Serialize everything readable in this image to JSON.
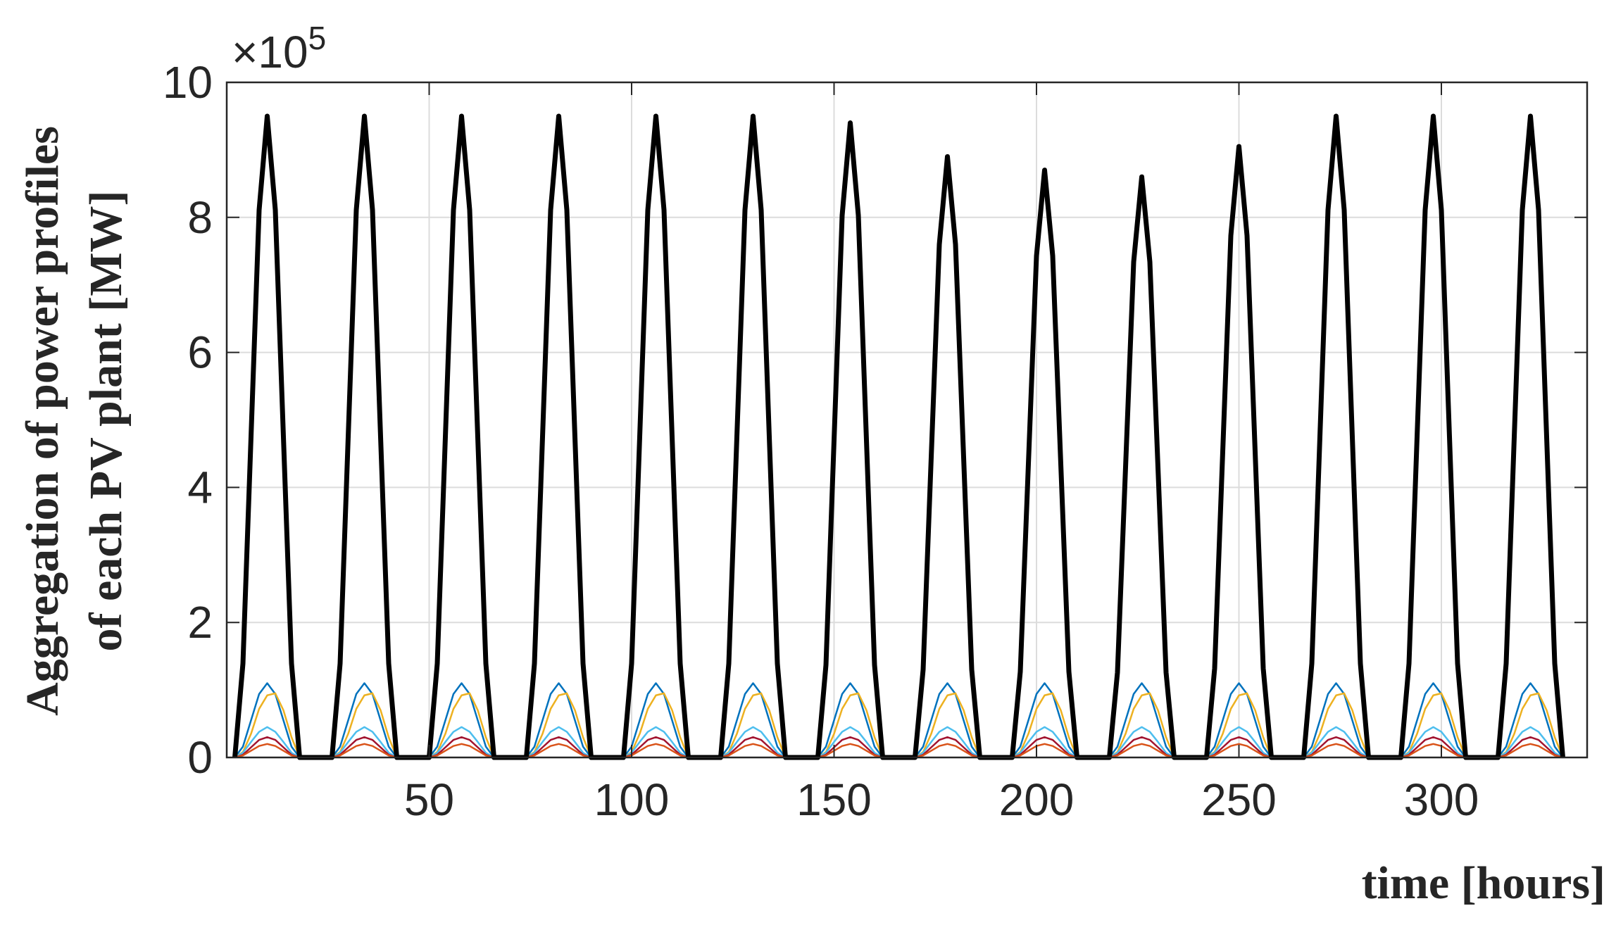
{
  "chart_data": {
    "type": "line",
    "y_label_lines": [
      "Aggregation of power profiles",
      "of each PV plant [MW]"
    ],
    "x_label": "time [hours]",
    "y_multiplier": "×10",
    "y_multiplier_exponent": "5",
    "xlim": [
      0,
      336
    ],
    "xticks": [
      50,
      100,
      150,
      200,
      250,
      300
    ],
    "ylim": [
      0,
      10
    ],
    "yticks": [
      0,
      2,
      4,
      6,
      8,
      10
    ],
    "grid": true,
    "x": [
      2,
      4,
      6,
      8,
      10,
      12,
      14,
      16,
      18,
      26,
      28,
      30,
      32,
      34,
      36,
      38,
      40,
      42,
      50,
      52,
      54,
      56,
      58,
      60,
      62,
      64,
      66,
      74,
      76,
      78,
      80,
      82,
      84,
      86,
      88,
      90,
      98,
      100,
      102,
      104,
      106,
      108,
      110,
      112,
      114,
      122,
      124,
      126,
      128,
      130,
      132,
      134,
      136,
      138,
      146,
      148,
      150,
      152,
      154,
      156,
      158,
      160,
      162,
      170,
      172,
      174,
      176,
      178,
      180,
      182,
      184,
      186,
      194,
      196,
      198,
      200,
      202,
      204,
      206,
      208,
      210,
      218,
      220,
      222,
      224,
      226,
      228,
      230,
      232,
      234,
      242,
      244,
      246,
      248,
      250,
      252,
      254,
      256,
      258,
      266,
      268,
      270,
      272,
      274,
      276,
      278,
      280,
      282,
      290,
      292,
      294,
      296,
      298,
      300,
      302,
      304,
      306,
      314,
      316,
      318,
      320,
      322,
      324,
      326,
      328,
      330
    ],
    "series": [
      {
        "color": "#0072BD",
        "width": 2.5,
        "values": [
          0,
          0.16,
          0.55,
          0.94,
          1.1,
          0.94,
          0.55,
          0.16,
          0,
          0,
          0.16,
          0.55,
          0.94,
          1.1,
          0.94,
          0.55,
          0.16,
          0,
          0,
          0.16,
          0.55,
          0.94,
          1.1,
          0.94,
          0.55,
          0.16,
          0,
          0,
          0.16,
          0.55,
          0.94,
          1.1,
          0.94,
          0.55,
          0.16,
          0,
          0,
          0.16,
          0.55,
          0.94,
          1.1,
          0.94,
          0.55,
          0.16,
          0,
          0,
          0.16,
          0.55,
          0.94,
          1.1,
          0.94,
          0.55,
          0.16,
          0,
          0,
          0.16,
          0.55,
          0.94,
          1.1,
          0.94,
          0.55,
          0.16,
          0,
          0,
          0.16,
          0.55,
          0.94,
          1.1,
          0.94,
          0.55,
          0.16,
          0,
          0,
          0.16,
          0.55,
          0.94,
          1.1,
          0.94,
          0.55,
          0.16,
          0,
          0,
          0.16,
          0.55,
          0.94,
          1.1,
          0.94,
          0.55,
          0.16,
          0,
          0,
          0.16,
          0.55,
          0.94,
          1.1,
          0.94,
          0.55,
          0.16,
          0,
          0,
          0.16,
          0.55,
          0.94,
          1.1,
          0.94,
          0.55,
          0.16,
          0,
          0,
          0.16,
          0.55,
          0.94,
          1.1,
          0.94,
          0.55,
          0.16,
          0,
          0,
          0.16,
          0.55,
          0.94,
          1.1,
          0.94,
          0.55,
          0.16,
          0
        ]
      },
      {
        "color": "#EDB120",
        "width": 2.5,
        "values": [
          0,
          0.08,
          0.35,
          0.72,
          0.92,
          0.95,
          0.7,
          0.3,
          0,
          0,
          0.08,
          0.35,
          0.72,
          0.92,
          0.95,
          0.7,
          0.3,
          0,
          0,
          0.08,
          0.35,
          0.72,
          0.92,
          0.95,
          0.7,
          0.3,
          0,
          0,
          0.08,
          0.35,
          0.72,
          0.92,
          0.95,
          0.7,
          0.3,
          0,
          0,
          0.08,
          0.35,
          0.72,
          0.92,
          0.95,
          0.7,
          0.3,
          0,
          0,
          0.08,
          0.35,
          0.72,
          0.92,
          0.95,
          0.7,
          0.3,
          0,
          0,
          0.08,
          0.35,
          0.72,
          0.92,
          0.95,
          0.7,
          0.3,
          0,
          0,
          0.08,
          0.35,
          0.72,
          0.92,
          0.95,
          0.7,
          0.3,
          0,
          0,
          0.08,
          0.35,
          0.72,
          0.92,
          0.95,
          0.7,
          0.3,
          0,
          0,
          0.08,
          0.35,
          0.72,
          0.92,
          0.95,
          0.7,
          0.3,
          0,
          0,
          0.08,
          0.35,
          0.72,
          0.92,
          0.95,
          0.7,
          0.3,
          0,
          0,
          0.08,
          0.35,
          0.72,
          0.92,
          0.95,
          0.7,
          0.3,
          0,
          0,
          0.08,
          0.35,
          0.72,
          0.92,
          0.95,
          0.7,
          0.3,
          0,
          0,
          0.08,
          0.35,
          0.72,
          0.92,
          0.95,
          0.7,
          0.3,
          0
        ]
      },
      {
        "color": "#4DBEEE",
        "width": 2.5,
        "values": [
          0,
          0.07,
          0.23,
          0.38,
          0.45,
          0.38,
          0.23,
          0.07,
          0,
          0,
          0.07,
          0.23,
          0.38,
          0.45,
          0.38,
          0.23,
          0.07,
          0,
          0,
          0.07,
          0.23,
          0.38,
          0.45,
          0.38,
          0.23,
          0.07,
          0,
          0,
          0.07,
          0.23,
          0.38,
          0.45,
          0.38,
          0.23,
          0.07,
          0,
          0,
          0.07,
          0.23,
          0.38,
          0.45,
          0.38,
          0.23,
          0.07,
          0,
          0,
          0.07,
          0.23,
          0.38,
          0.45,
          0.38,
          0.23,
          0.07,
          0,
          0,
          0.07,
          0.23,
          0.38,
          0.45,
          0.38,
          0.23,
          0.07,
          0,
          0,
          0.07,
          0.23,
          0.38,
          0.45,
          0.38,
          0.23,
          0.07,
          0,
          0,
          0.07,
          0.23,
          0.38,
          0.45,
          0.38,
          0.23,
          0.07,
          0,
          0,
          0.07,
          0.23,
          0.38,
          0.45,
          0.38,
          0.23,
          0.07,
          0,
          0,
          0.07,
          0.23,
          0.38,
          0.45,
          0.38,
          0.23,
          0.07,
          0,
          0,
          0.07,
          0.23,
          0.38,
          0.45,
          0.38,
          0.23,
          0.07,
          0,
          0,
          0.07,
          0.23,
          0.38,
          0.45,
          0.38,
          0.23,
          0.07,
          0,
          0,
          0.07,
          0.23,
          0.38,
          0.45,
          0.38,
          0.23,
          0.07,
          0
        ]
      },
      {
        "color": "#A2142F",
        "width": 2.5,
        "values": [
          0,
          0.04,
          0.15,
          0.26,
          0.3,
          0.26,
          0.15,
          0.04,
          0,
          0,
          0.04,
          0.15,
          0.26,
          0.3,
          0.26,
          0.15,
          0.04,
          0,
          0,
          0.04,
          0.15,
          0.26,
          0.3,
          0.26,
          0.15,
          0.04,
          0,
          0,
          0.04,
          0.15,
          0.26,
          0.3,
          0.26,
          0.15,
          0.04,
          0,
          0,
          0.04,
          0.15,
          0.26,
          0.3,
          0.26,
          0.15,
          0.04,
          0,
          0,
          0.04,
          0.15,
          0.26,
          0.3,
          0.26,
          0.15,
          0.04,
          0,
          0,
          0.04,
          0.15,
          0.26,
          0.3,
          0.26,
          0.15,
          0.04,
          0,
          0,
          0.04,
          0.15,
          0.26,
          0.3,
          0.26,
          0.15,
          0.04,
          0,
          0,
          0.04,
          0.15,
          0.26,
          0.3,
          0.26,
          0.15,
          0.04,
          0,
          0,
          0.04,
          0.15,
          0.26,
          0.3,
          0.26,
          0.15,
          0.04,
          0,
          0,
          0.04,
          0.15,
          0.26,
          0.3,
          0.26,
          0.15,
          0.04,
          0,
          0,
          0.04,
          0.15,
          0.26,
          0.3,
          0.26,
          0.15,
          0.04,
          0,
          0,
          0.04,
          0.15,
          0.26,
          0.3,
          0.26,
          0.15,
          0.04,
          0,
          0,
          0.04,
          0.15,
          0.26,
          0.3,
          0.26,
          0.15,
          0.04,
          0
        ]
      },
      {
        "color": "#D95319",
        "width": 2.5,
        "values": [
          0,
          0.03,
          0.1,
          0.17,
          0.2,
          0.17,
          0.1,
          0.03,
          0,
          0,
          0.03,
          0.1,
          0.17,
          0.2,
          0.17,
          0.1,
          0.03,
          0,
          0,
          0.03,
          0.1,
          0.17,
          0.2,
          0.17,
          0.1,
          0.03,
          0,
          0,
          0.03,
          0.1,
          0.17,
          0.2,
          0.17,
          0.1,
          0.03,
          0,
          0,
          0.03,
          0.1,
          0.17,
          0.2,
          0.17,
          0.1,
          0.03,
          0,
          0,
          0.03,
          0.1,
          0.17,
          0.2,
          0.17,
          0.1,
          0.03,
          0,
          0,
          0.03,
          0.1,
          0.17,
          0.2,
          0.17,
          0.1,
          0.03,
          0,
          0,
          0.03,
          0.1,
          0.17,
          0.2,
          0.17,
          0.1,
          0.03,
          0,
          0,
          0.03,
          0.1,
          0.17,
          0.2,
          0.17,
          0.1,
          0.03,
          0,
          0,
          0.03,
          0.1,
          0.17,
          0.2,
          0.17,
          0.1,
          0.03,
          0,
          0,
          0.03,
          0.1,
          0.17,
          0.2,
          0.17,
          0.1,
          0.03,
          0,
          0,
          0.03,
          0.1,
          0.17,
          0.2,
          0.17,
          0.1,
          0.03,
          0,
          0,
          0.03,
          0.1,
          0.17,
          0.2,
          0.17,
          0.1,
          0.03,
          0,
          0,
          0.03,
          0.1,
          0.17,
          0.2,
          0.17,
          0.1,
          0.03,
          0
        ]
      },
      {
        "color": "#000000",
        "width": 7,
        "values": [
          0,
          1.39,
          4.75,
          8.11,
          9.5,
          8.11,
          4.75,
          1.39,
          0,
          0,
          1.39,
          4.75,
          8.11,
          9.5,
          8.11,
          4.75,
          1.39,
          0,
          0,
          1.39,
          4.75,
          8.11,
          9.5,
          8.11,
          4.75,
          1.39,
          0,
          0,
          1.39,
          4.75,
          8.11,
          9.5,
          8.11,
          4.75,
          1.39,
          0,
          0,
          1.39,
          4.75,
          8.11,
          9.5,
          8.11,
          4.75,
          1.39,
          0,
          0,
          1.39,
          4.75,
          8.11,
          9.5,
          8.11,
          4.75,
          1.39,
          0,
          0,
          1.37,
          4.7,
          8.03,
          9.4,
          8.03,
          4.7,
          1.37,
          0,
          0,
          1.3,
          4.45,
          7.6,
          8.9,
          7.6,
          4.45,
          1.3,
          0,
          0,
          1.27,
          4.35,
          7.43,
          8.7,
          7.43,
          4.35,
          1.27,
          0,
          0,
          1.26,
          4.3,
          7.34,
          8.6,
          7.34,
          4.3,
          1.26,
          0,
          0,
          1.32,
          4.53,
          7.73,
          9.05,
          7.73,
          4.53,
          1.32,
          0,
          0,
          1.39,
          4.75,
          8.11,
          9.5,
          8.11,
          4.75,
          1.39,
          0,
          0,
          1.39,
          4.75,
          8.11,
          9.5,
          8.11,
          4.75,
          1.39,
          0,
          0,
          1.39,
          4.75,
          8.11,
          9.5,
          8.11,
          4.75,
          1.39,
          0
        ]
      }
    ]
  }
}
